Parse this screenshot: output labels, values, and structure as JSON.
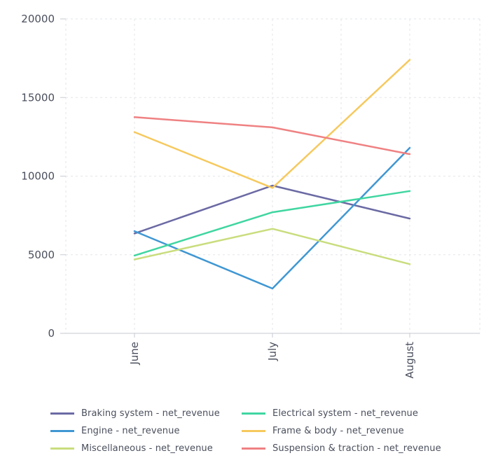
{
  "chart_data": {
    "type": "line",
    "categories": [
      "June",
      "July",
      "August"
    ],
    "ylim": [
      0,
      20000
    ],
    "yticks": [
      "0",
      "5000",
      "10000",
      "15000",
      "20000"
    ],
    "grid": true,
    "legend_position": "bottom",
    "series": [
      {
        "name": "Braking system - net_revenue",
        "color": "#6b6aa4",
        "values": [
          6350,
          9400,
          7300
        ]
      },
      {
        "name": "Engine - net_revenue",
        "color": "#3f97d3",
        "values": [
          6500,
          2850,
          11800
        ]
      },
      {
        "name": "Miscellaneous - net_revenue",
        "color": "#c9dd7d",
        "values": [
          4700,
          6650,
          4400
        ]
      },
      {
        "name": "Electrical system - net_revenue",
        "color": "#40d6a1",
        "values": [
          4950,
          7700,
          9050
        ]
      },
      {
        "name": "Frame & body - net_revenue",
        "color": "#f6c95e",
        "values": [
          12800,
          9250,
          17400
        ]
      },
      {
        "name": "Suspension & traction - net_revenue",
        "color": "#ef8182",
        "values": [
          13750,
          13100,
          11400
        ]
      }
    ]
  }
}
